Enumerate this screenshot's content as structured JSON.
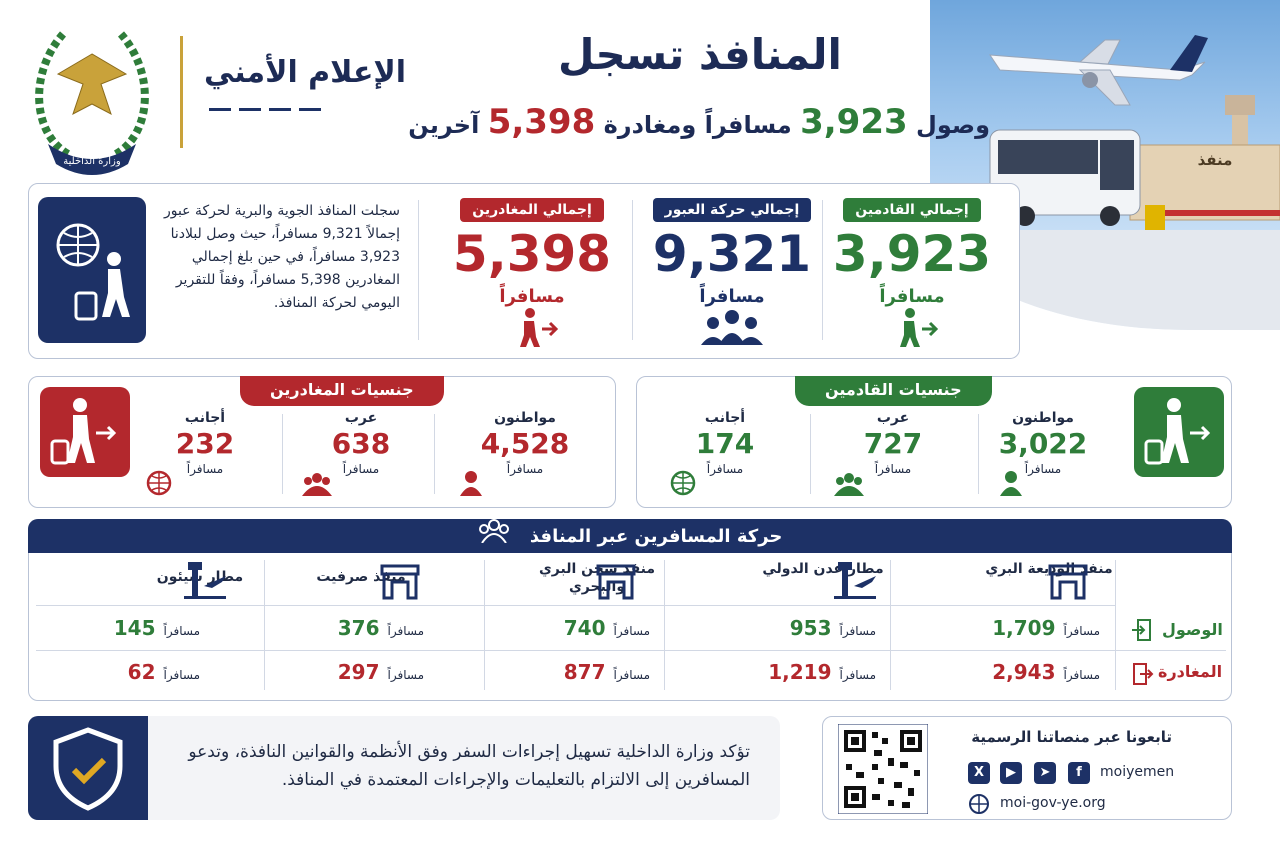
{
  "brand": {
    "name": "الإعلام الأمني",
    "emblem_text": "وزارة الداخلية"
  },
  "header": {
    "title": "المنافذ تسجل",
    "subtitle_prefix": "وصول",
    "subtitle_arrivals": "3,923",
    "subtitle_middle": "مسافراً ومغادرة",
    "subtitle_departures": "5,398",
    "subtitle_suffix": "آخرين",
    "gate_sign": "منفذ"
  },
  "summary": {
    "text": "سجلت المنافذ الجوية والبرية لحركة عبور إجمالاً 9,321 مسافراً، حيث وصل لبلادنا 3,923 مسافراً، في حين بلغ إجمالي المغادرين 5,398 مسافراً، وفقاً للتقرير اليومي لحركة المنافذ.",
    "stats": [
      {
        "label": "إجمالي القادمين",
        "value": "3,923",
        "unit": "مسافراً",
        "color": "#2f7d3a",
        "icon": "arrival-icon"
      },
      {
        "label": "إجمالي حركة العبور",
        "value": "9,321",
        "unit": "مسافراً",
        "color": "#1d3166",
        "icon": "group-icon"
      },
      {
        "label": "إجمالي المغادرين",
        "value": "5,398",
        "unit": "مسافراً",
        "color": "#b3282d",
        "icon": "departure-icon"
      }
    ]
  },
  "arrivals_nationality": {
    "title": "جنسيات القادمين",
    "items": [
      {
        "label": "مواطنون",
        "value": "3,022",
        "unit": "مسافراً",
        "icon": "person-icon"
      },
      {
        "label": "عرب",
        "value": "727",
        "unit": "مسافراً",
        "icon": "group-icon"
      },
      {
        "label": "أجانب",
        "value": "174",
        "unit": "مسافراً",
        "icon": "globe-icon"
      }
    ]
  },
  "departures_nationality": {
    "title": "جنسيات المغادرين",
    "items": [
      {
        "label": "مواطنون",
        "value": "4,528",
        "unit": "مسافراً",
        "icon": "person-icon"
      },
      {
        "label": "عرب",
        "value": "638",
        "unit": "مسافراً",
        "icon": "group-icon"
      },
      {
        "label": "أجانب",
        "value": "232",
        "unit": "مسافراً",
        "icon": "globe-icon"
      }
    ]
  },
  "movement": {
    "title": "حركة المسافرين عبر المنافذ",
    "row_labels": {
      "arrival": "الوصول",
      "departure": "المغادرة"
    },
    "unit": "مسافراً",
    "ports": [
      {
        "name": "منفذ الوديعة البري",
        "arrival": "1,709",
        "departure": "2,943",
        "icon": "gate-icon"
      },
      {
        "name": "مطار عدن الدولي",
        "arrival": "953",
        "departure": "1,219",
        "icon": "airport-icon"
      },
      {
        "name": "منفذ شحن البري والبحري",
        "arrival": "740",
        "departure": "877",
        "icon": "gate-icon"
      },
      {
        "name": "منفذ صرفيت",
        "arrival": "376",
        "departure": "297",
        "icon": "gate-icon"
      },
      {
        "name": "مطار سيئون",
        "arrival": "145",
        "departure": "62",
        "icon": "airport-icon"
      }
    ]
  },
  "notice": {
    "text": "تؤكد وزارة الداخلية تسهيل إجراءات السفر وفق الأنظمة والقوانين النافذة، وتدعو المسافرين إلى الالتزام بالتعليمات والإجراءات المعتمدة في المنافذ."
  },
  "social": {
    "title": "تابعونا عبر منصاتنا الرسمية",
    "handle": "moiyemen",
    "website": "moi-gov-ye.org"
  }
}
